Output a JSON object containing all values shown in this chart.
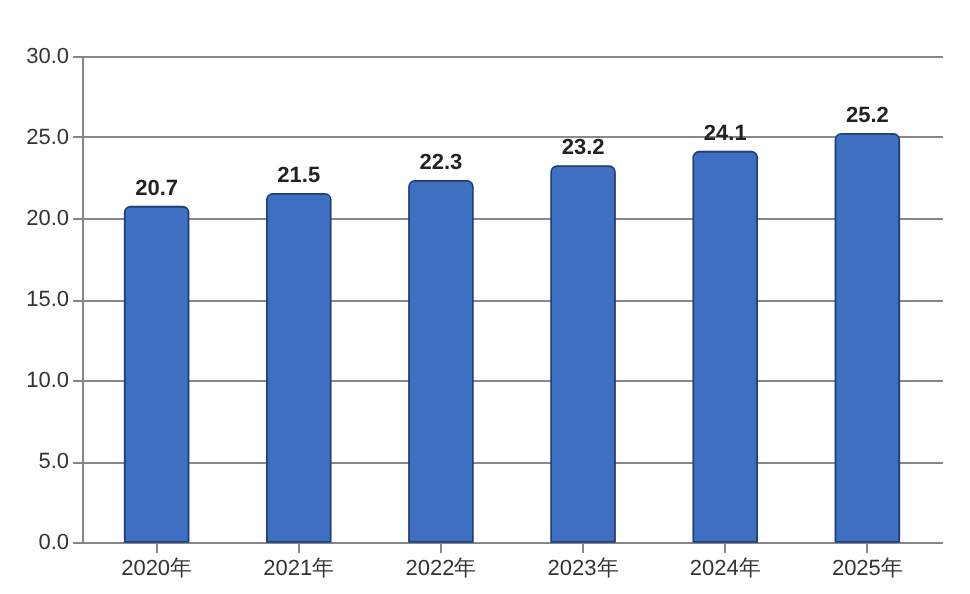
{
  "chart_data": {
    "type": "bar",
    "categories": [
      "2020年",
      "2021年",
      "2022年",
      "2023年",
      "2024年",
      "2025年"
    ],
    "values": [
      20.7,
      21.5,
      22.3,
      23.2,
      24.1,
      25.2
    ],
    "color": "#3f6fc0",
    "ylim": [
      0,
      30
    ],
    "yticks": [
      {
        "value": 0,
        "label": "0.0"
      },
      {
        "value": 5,
        "label": "5.0"
      },
      {
        "value": 10,
        "label": "10.0"
      },
      {
        "value": 15,
        "label": "15.0"
      },
      {
        "value": 20,
        "label": "20.0"
      },
      {
        "value": 25,
        "label": "25.0"
      },
      {
        "value": 30,
        "label": "30.0"
      }
    ],
    "grid": "y",
    "data_labels": true
  }
}
